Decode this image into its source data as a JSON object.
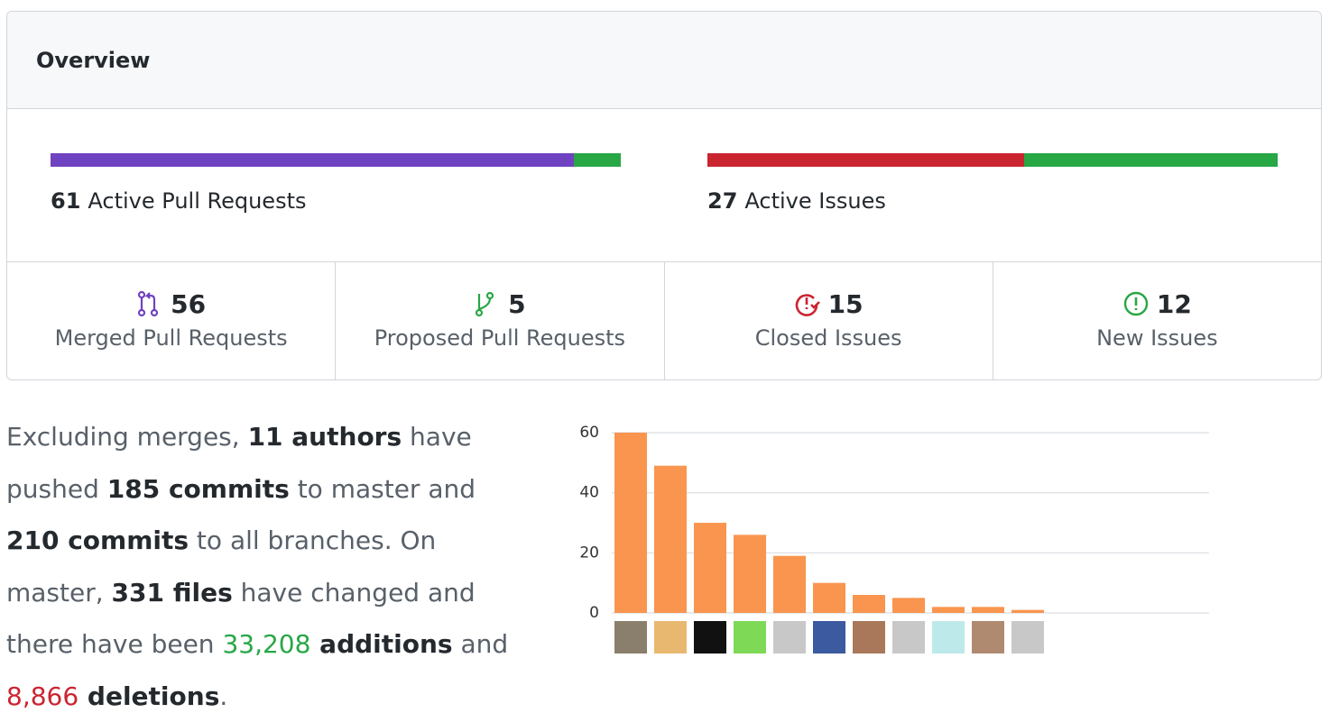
{
  "header": {
    "title": "Overview"
  },
  "pull_requests": {
    "count": 61,
    "label": "Active Pull Requests"
  },
  "issues": {
    "count": 27,
    "label": "Active Issues"
  },
  "stats": [
    {
      "count": 56,
      "label": "Merged Pull Requests",
      "color": "#6f42c1",
      "icon": "merged"
    },
    {
      "count": 5,
      "label": "Proposed Pull Requests",
      "color": "#28a745",
      "icon": "branch"
    },
    {
      "count": 15,
      "label": "Closed Issues",
      "color": "#cb2431",
      "icon": "closed"
    },
    {
      "count": 12,
      "label": "New Issues",
      "color": "#28a745",
      "icon": "issue"
    }
  ],
  "summary": [
    {
      "text": "Excluding merges, ",
      "style": "plain"
    },
    {
      "text": "11 authors",
      "style": "bold"
    },
    {
      "text": " have pushed ",
      "style": "plain"
    },
    {
      "text": "185 commits",
      "style": "bold"
    },
    {
      "text": " to master and ",
      "style": "plain"
    },
    {
      "text": "210 commits",
      "style": "bold"
    },
    {
      "text": " to all branches. On master, ",
      "style": "plain"
    },
    {
      "text": "331 files",
      "style": "bold"
    },
    {
      "text": " have changed and there have been ",
      "style": "plain"
    },
    {
      "text": "33,208",
      "style": "green"
    },
    {
      "text": " additions",
      "style": "bold"
    },
    {
      "text": " and ",
      "style": "plain"
    },
    {
      "text": "8,866",
      "style": "red"
    },
    {
      "text": " deletions",
      "style": "bold"
    },
    {
      "text": ".",
      "style": "plain"
    }
  ],
  "chart_data": {
    "type": "bar",
    "values": [
      60,
      49,
      30,
      26,
      19,
      10,
      6,
      5,
      2,
      2,
      1
    ],
    "color": "#f9954e",
    "ylim": [
      0,
      60
    ],
    "yticks": [
      0,
      20,
      40,
      60
    ],
    "grid": true
  }
}
